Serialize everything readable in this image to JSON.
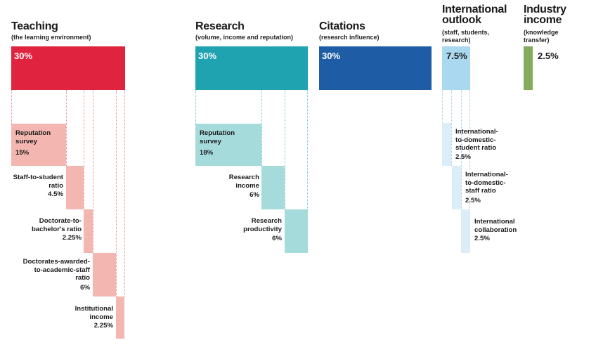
{
  "colors": {
    "teaching_main": "#e0233f",
    "teaching_sub": "#f4b6b0",
    "research_main": "#1fa3b0",
    "research_sub": "#a6dbdc",
    "citations_main": "#1e5da6",
    "international_main": "#a9d8ef",
    "international_sub": "#dcedfa",
    "industry_main": "#85ac5d"
  },
  "pillars": {
    "teaching": {
      "title": "Teaching",
      "subtitle": "(the learning environment)",
      "value": "30%",
      "metrics": [
        {
          "name": "Reputation\nsurvey",
          "value": "15%"
        },
        {
          "name": "Staff-to-student\nratio",
          "value": "4.5%"
        },
        {
          "name": "Doctorate-to-\nbachelor's ratio",
          "value": "2.25%"
        },
        {
          "name": "Doctorates-awarded-\nto-academic-staff\nratio",
          "value": "6%"
        },
        {
          "name": "Institutional\nincome",
          "value": "2.25%"
        }
      ]
    },
    "research": {
      "title": "Research",
      "subtitle": "(volume, income and reputation)",
      "value": "30%",
      "metrics": [
        {
          "name": "Reputation\nsurvey",
          "value": "18%"
        },
        {
          "name": "Research\nincome",
          "value": "6%"
        },
        {
          "name": "Research\nproductivity",
          "value": "6%"
        }
      ]
    },
    "citations": {
      "title": "Citations",
      "subtitle": "(research influence)",
      "value": "30%"
    },
    "international": {
      "title": "International\noutlook",
      "subtitle": "(staff, students,\nresearch)",
      "value": "7.5%",
      "metrics": [
        {
          "name": "International-\nto-domestic-\nstudent ratio",
          "value": "2.5%"
        },
        {
          "name": "International-\nto-domestic-\nstaff ratio",
          "value": "2.5%"
        },
        {
          "name": "International\ncollaboration",
          "value": "2.5%"
        }
      ]
    },
    "industry": {
      "title": "Industry\nincome",
      "subtitle": "(knowledge\ntransfer)",
      "value": "2.5%"
    }
  }
}
